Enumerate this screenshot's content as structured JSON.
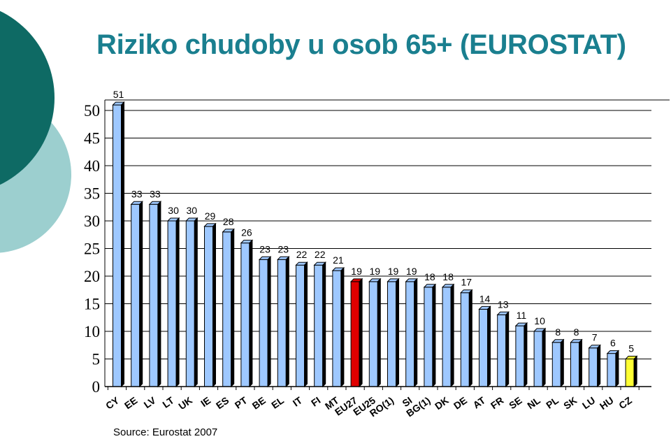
{
  "title": "Riziko chudoby u osob 65+ (EUROSTAT)",
  "source": "Source: Eurostat 2007",
  "colors": {
    "title": "#1a7f8f",
    "default_bar": "#9ec8ff",
    "highlight_eu27": "#e00000",
    "highlight_cz": "#ffff33",
    "deco_dark": "#0e6a64",
    "deco_light": "#9ccfcf"
  },
  "chart_data": {
    "type": "bar",
    "title": "Riziko chudoby u osob 65+ (EUROSTAT)",
    "xlabel": "",
    "ylabel": "",
    "ylim": [
      0,
      50
    ],
    "yticks": [
      0,
      5,
      10,
      15,
      20,
      25,
      30,
      35,
      40,
      45,
      50
    ],
    "grid": true,
    "legend": "none",
    "categories": [
      "CY",
      "EE",
      "LV",
      "LT",
      "UK",
      "IE",
      "ES",
      "PT",
      "BE",
      "EL",
      "IT",
      "FI",
      "MT",
      "EU27",
      "EU25",
      "RO(1)",
      "SI",
      "BG(1)",
      "DK",
      "DE",
      "AT",
      "FR",
      "SE",
      "NL",
      "PL",
      "SK",
      "LU",
      "HU",
      "CZ"
    ],
    "values": [
      51,
      33,
      33,
      30,
      30,
      29,
      28,
      26,
      23,
      23,
      22,
      22,
      21,
      19,
      19,
      19,
      19,
      18,
      18,
      17,
      14,
      13,
      11,
      10,
      8,
      8,
      7,
      6,
      5
    ],
    "highlights": {
      "EU27": "red",
      "CZ": "yellow"
    }
  }
}
